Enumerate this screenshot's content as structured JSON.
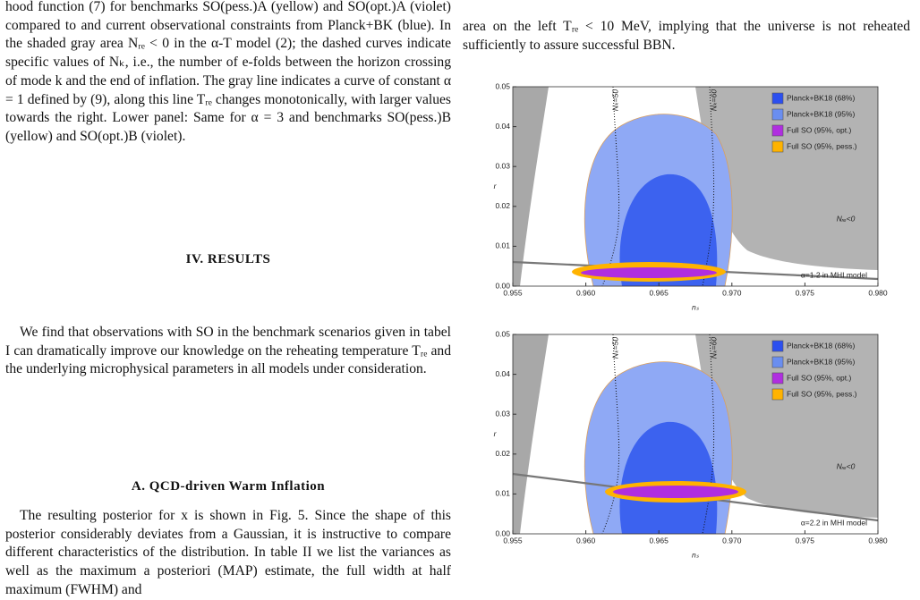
{
  "left_column": {
    "caption": "hood function (7) for benchmarks SO(pess.)A (yellow) and SO(opt.)A (violet) compared to and current observational constraints from Planck+BK (blue). In the shaded gray area Nᵣₑ < 0 in the α-T model (2); the dashed curves indicate specific values of Nₖ, i.e., the number of e-folds between the horizon crossing of mode k and the end of inflation. The gray line indicates a curve of constant α = 1 defined by (9), along this line Tᵣₑ changes monotonically, with larger values towards the right. Lower panel: Same for α = 3 and benchmarks SO(pess.)B (yellow) and SO(opt.)B (violet).",
    "section_heading": "IV.   RESULTS",
    "paragraph_1": "We find that observations with SO in the benchmark scenarios given in tabel I can dramatically improve our knowledge on the reheating temperature Tᵣₑ and the underlying microphysical parameters in all models under consideration.",
    "subsection_heading": "A.   QCD-driven Warm Inflation",
    "paragraph_2": "The resulting posterior for x is shown in Fig. 5. Since the shape of this posterior considerably deviates from a Gaussian, it is instructive to compare different characteristics of the distribution. In table II we list the variances as well as the maximum a posteriori (MAP) estimate, the full width at half maximum (FWHM) and"
  },
  "right_column": {
    "paragraph": "area on the left Tᵣₑ < 10 MeV, implying that the universe is not reheated sufficiently to assure successful BBN."
  },
  "chart_data": [
    {
      "type": "contour",
      "xlabel": "nₛ",
      "ylabel": "r",
      "xlim": [
        0.955,
        0.98
      ],
      "xticks": [
        0.955,
        {
          "value": 0.96,
          "label": "0.960"
        },
        0.965,
        {
          "value": 0.97,
          "label": "0.970"
        },
        0.975,
        {
          "value": 0.98,
          "label": "0.980"
        }
      ],
      "ylim": [
        0,
        0.05
      ],
      "yticks": [
        {
          "value": 0,
          "label": "0.00"
        },
        {
          "value": 0.01,
          "label": "0.01"
        },
        {
          "value": 0.02,
          "label": "0.02"
        },
        {
          "value": 0.03,
          "label": "0.03"
        },
        {
          "value": 0.04,
          "label": "0.04"
        },
        {
          "value": 0.05,
          "label": "0.05"
        }
      ],
      "series": [
        {
          "name": "Planck+BK18 (68%)",
          "color": "#2b4ff0"
        },
        {
          "name": "Planck+BK18 (95%)",
          "color": "#6a8ef0"
        },
        {
          "name": "Full SO (95%, opt.)",
          "color": "#b02ee0"
        },
        {
          "name": "Full SO (95%, pess.)",
          "color": "#ffb300"
        }
      ],
      "annotations": [
        "Nₖ=50",
        "Nₖ=60",
        "Nᵣₑ<0",
        "α=1.2 in MHI model"
      ]
    },
    {
      "type": "contour",
      "xlabel": "nₛ",
      "ylabel": "r",
      "xlim": [
        0.955,
        0.98
      ],
      "xticks": [
        0.955,
        {
          "value": 0.96,
          "label": "0.960"
        },
        0.965,
        {
          "value": 0.97,
          "label": "0.970"
        },
        0.975,
        {
          "value": 0.98,
          "label": "0.980"
        }
      ],
      "ylim": [
        0,
        0.05
      ],
      "yticks": [
        {
          "value": 0,
          "label": "0.00"
        },
        {
          "value": 0.01,
          "label": "0.01"
        },
        {
          "value": 0.02,
          "label": "0.02"
        },
        {
          "value": 0.03,
          "label": "0.03"
        },
        {
          "value": 0.04,
          "label": "0.04"
        },
        {
          "value": 0.05,
          "label": "0.05"
        }
      ],
      "series": [
        {
          "name": "Planck+BK18 (68%)",
          "color": "#2b4ff0"
        },
        {
          "name": "Planck+BK18 (95%)",
          "color": "#6a8ef0"
        },
        {
          "name": "Full SO (95%, opt.)",
          "color": "#b02ee0"
        },
        {
          "name": "Full SO (95%, pess.)",
          "color": "#ffb300"
        }
      ],
      "annotations": [
        "Nₖ=50",
        "Nₖ=60",
        "Nᵣₑ<0",
        "α=2.2 in MHI model"
      ]
    }
  ]
}
